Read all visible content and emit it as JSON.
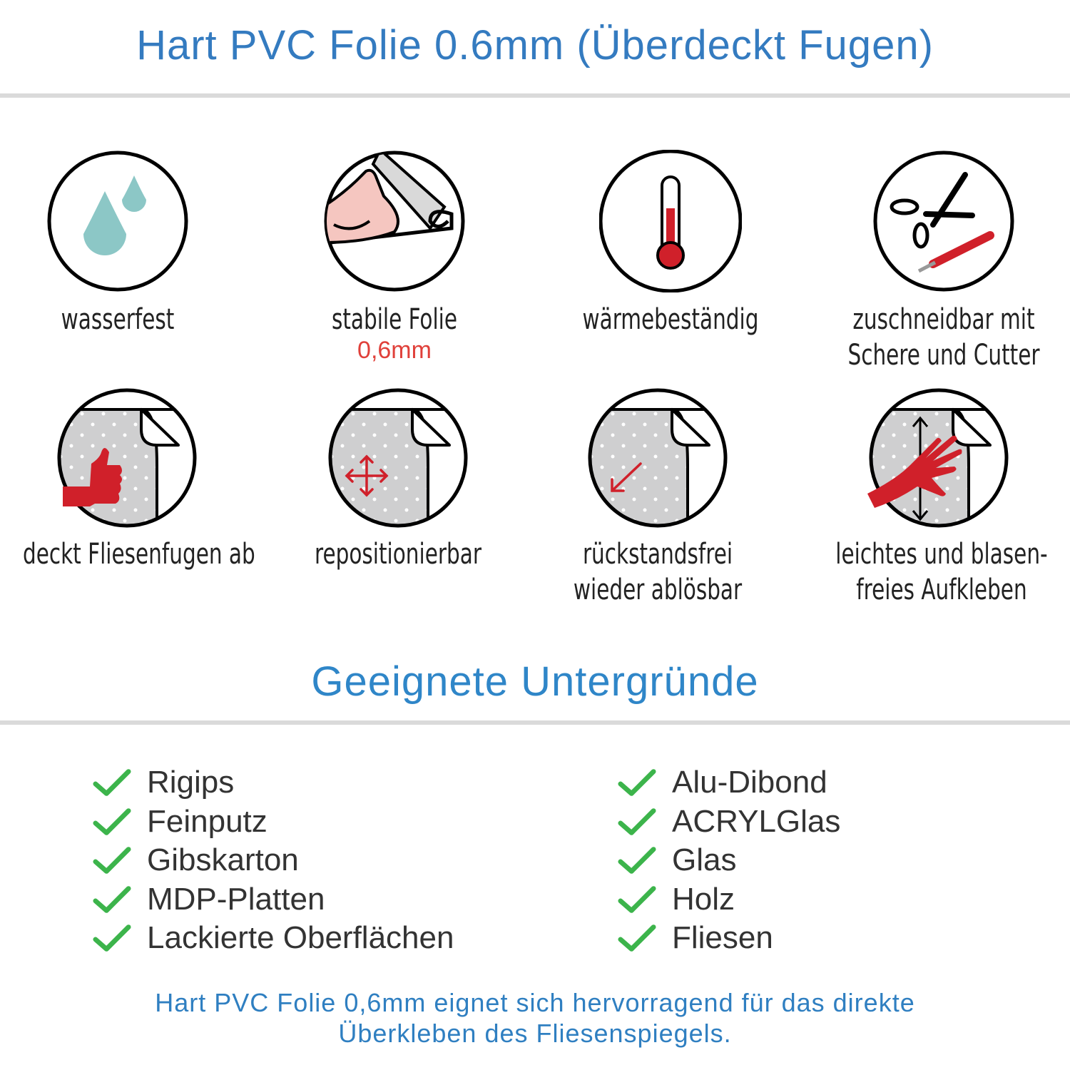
{
  "header": {
    "title": "Hart PVC Folie 0.6mm (Überdeckt Fugen)"
  },
  "features": [
    {
      "icon": "water-drops-icon",
      "label": "wasserfest"
    },
    {
      "icon": "strong-arm-roll-icon",
      "label": "stabile Folie",
      "sublabel": "0,6mm"
    },
    {
      "icon": "thermometer-icon",
      "label": "wärmebeständig"
    },
    {
      "icon": "scissors-cutter-icon",
      "label": "zuschneidbar mit",
      "label2": "Schere und Cutter"
    },
    {
      "icon": "thumbs-up-tiles-icon",
      "label": "deckt Fliesenfugen ab"
    },
    {
      "icon": "move-arrows-icon",
      "label": "repositionierbar"
    },
    {
      "icon": "peel-arrow-icon",
      "label": "rückstandsfrei",
      "label2": "wieder ablösbar"
    },
    {
      "icon": "hand-smooth-icon",
      "label": "leichtes und blasen-",
      "label2": "freies Aufkleben"
    }
  ],
  "surfaces": {
    "title": "Geeignete Untergründe",
    "left": [
      "Rigips",
      "Feinputz",
      "Gibskarton",
      "MDP-Platten",
      "Lackierte Oberflächen"
    ],
    "right": [
      "Alu-Dibond",
      "ACRYLGlas",
      "Glas",
      "Holz",
      "Fliesen"
    ]
  },
  "footer": {
    "line1": "Hart PVC Folie 0,6mm eignet sich hervorragend für das direkte",
    "line2": "Überkleben des Fliesenspiegels."
  },
  "colors": {
    "title": "#347bc0",
    "accent_red": "#d0202a",
    "check": "#3cb44b",
    "drop": "#8cc7c6",
    "rule": "#dadada"
  }
}
